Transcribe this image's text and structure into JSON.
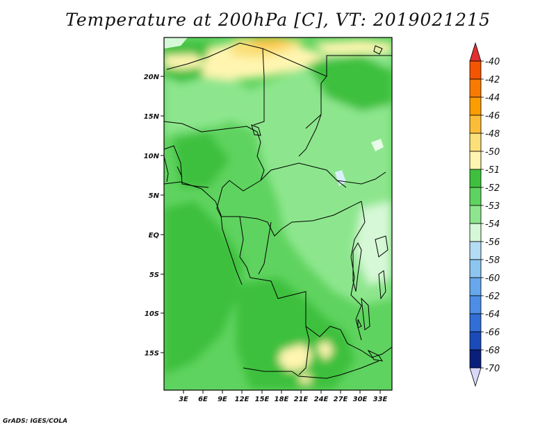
{
  "title": "Temperature at 200hPa [C], VT: 2019021215",
  "credit": "GrADS: IGES/COLA",
  "lat_labels": [
    "20N",
    "15N",
    "10N",
    "5N",
    "EQ",
    "5S",
    "10S",
    "15S"
  ],
  "lon_labels": [
    "3E",
    "6E",
    "9E",
    "12E",
    "15E",
    "18E",
    "21E",
    "24E",
    "27E",
    "30E",
    "33E"
  ],
  "colorbar": {
    "labels": [
      "-40",
      "-42",
      "-44",
      "-46",
      "-48",
      "-50",
      "-51",
      "-52",
      "-53",
      "-54",
      "-56",
      "-58",
      "-60",
      "-62",
      "-64",
      "-66",
      "-68",
      "-70"
    ],
    "colors": [
      "#ee2200",
      "#f55500",
      "#f97a00",
      "#fb9d00",
      "#fbbd38",
      "#fbe07a",
      "#fff5b0",
      "#3ec03e",
      "#5fd35f",
      "#8de68d",
      "#d6f8d6",
      "#b4ddf5",
      "#8cc6f0",
      "#66a8eb",
      "#4c8ee6",
      "#2f6fd6",
      "#1a4bb8",
      "#0a1f7a",
      "#00006e"
    ],
    "low_triangle": "#d8d8f8",
    "high_triangle": "#e03030"
  }
}
